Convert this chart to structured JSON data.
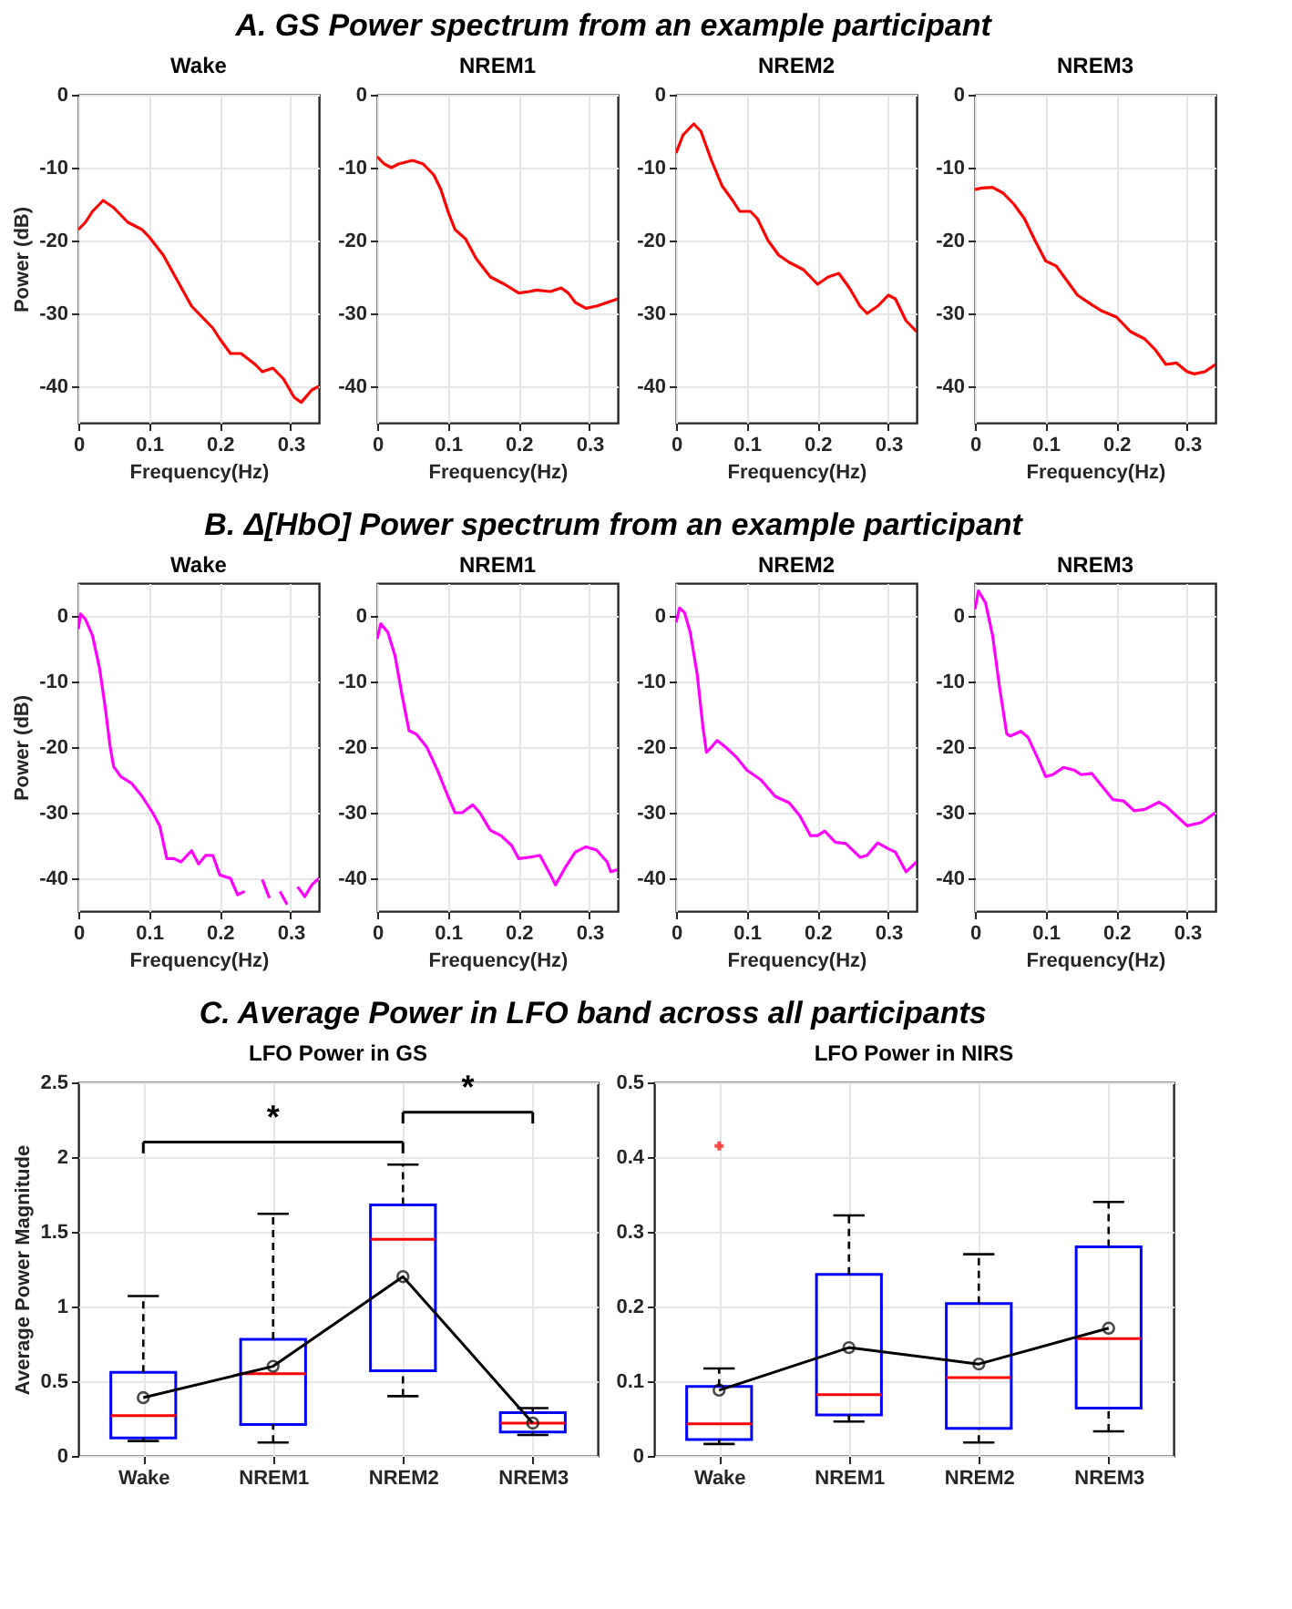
{
  "chart_data": [
    {
      "type": "line",
      "title": "Wake",
      "annotations": [
        "A. GS Power spectrum from an example participant"
      ],
      "xlabel": "Frequency(Hz)",
      "ylabel": "Power (dB)",
      "color": "#ff0000",
      "grid": true,
      "xlim": [
        0,
        0.34
      ],
      "xticks": [
        0,
        0.1,
        0.2,
        0.3
      ],
      "ylim": [
        -45,
        0
      ],
      "yticks": [
        -40,
        -30,
        -20,
        -10,
        0
      ],
      "x": [
        0,
        0.01,
        0.02,
        0.035,
        0.05,
        0.07,
        0.09,
        0.1,
        0.12,
        0.14,
        0.16,
        0.18,
        0.19,
        0.2,
        0.215,
        0.23,
        0.25,
        0.26,
        0.275,
        0.29,
        0.305,
        0.315,
        0.33,
        0.34
      ],
      "values": [
        -18.5,
        -17.5,
        -16,
        -14.5,
        -15.5,
        -17.5,
        -18.5,
        -19.5,
        -22,
        -25.5,
        -29,
        -31,
        -32,
        -33.5,
        -35.5,
        -35.5,
        -37,
        -38,
        -37.5,
        -39,
        -41.5,
        -42.2,
        -40.5,
        -40
      ]
    },
    {
      "type": "line",
      "title": "NREM1",
      "xlabel": "Frequency(Hz)",
      "color": "#ff0000",
      "grid": true,
      "xlim": [
        0,
        0.34
      ],
      "xticks": [
        0,
        0.1,
        0.2,
        0.3
      ],
      "ylim": [
        -45,
        0
      ],
      "yticks": [
        -40,
        -30,
        -20,
        -10,
        0
      ],
      "x": [
        0,
        0.01,
        0.02,
        0.03,
        0.05,
        0.065,
        0.08,
        0.09,
        0.1,
        0.11,
        0.125,
        0.14,
        0.16,
        0.18,
        0.2,
        0.215,
        0.225,
        0.245,
        0.26,
        0.27,
        0.28,
        0.295,
        0.31,
        0.34
      ],
      "values": [
        -8.5,
        -9.5,
        -10,
        -9.5,
        -9,
        -9.5,
        -11,
        -13,
        -16,
        -18.5,
        -19.8,
        -22.5,
        -25,
        -26,
        -27.2,
        -27,
        -26.8,
        -27,
        -26.5,
        -27.2,
        -28.5,
        -29.3,
        -29,
        -28
      ]
    },
    {
      "type": "line",
      "title": "NREM2",
      "xlabel": "Frequency(Hz)",
      "color": "#ff0000",
      "grid": true,
      "xlim": [
        0,
        0.34
      ],
      "xticks": [
        0,
        0.1,
        0.2,
        0.3
      ],
      "ylim": [
        -45,
        0
      ],
      "yticks": [
        -40,
        -30,
        -20,
        -10,
        0
      ],
      "x": [
        0,
        0.01,
        0.025,
        0.035,
        0.05,
        0.065,
        0.08,
        0.09,
        0.105,
        0.115,
        0.13,
        0.145,
        0.16,
        0.18,
        0.2,
        0.215,
        0.23,
        0.245,
        0.26,
        0.27,
        0.285,
        0.3,
        0.31,
        0.325,
        0.34
      ],
      "values": [
        -8,
        -5.5,
        -4,
        -5,
        -9,
        -12.5,
        -14.5,
        -16,
        -16,
        -17,
        -20,
        -22,
        -23,
        -24,
        -26,
        -25,
        -24.5,
        -26.5,
        -29,
        -30,
        -29,
        -27.5,
        -28,
        -31,
        -32.5
      ]
    },
    {
      "type": "line",
      "title": "NREM3",
      "xlabel": "Frequency(Hz)",
      "color": "#ff0000",
      "grid": true,
      "xlim": [
        0,
        0.34
      ],
      "xticks": [
        0,
        0.1,
        0.2,
        0.3
      ],
      "ylim": [
        -45,
        0
      ],
      "yticks": [
        -40,
        -30,
        -20,
        -10,
        0
      ],
      "x": [
        0,
        0.01,
        0.025,
        0.04,
        0.055,
        0.07,
        0.085,
        0.1,
        0.115,
        0.13,
        0.145,
        0.165,
        0.18,
        0.2,
        0.22,
        0.24,
        0.255,
        0.27,
        0.285,
        0.3,
        0.31,
        0.325,
        0.34
      ],
      "values": [
        -13,
        -12.8,
        -12.7,
        -13.5,
        -15,
        -17,
        -20,
        -22.8,
        -23.5,
        -25.5,
        -27.5,
        -28.8,
        -29.7,
        -30.5,
        -32.5,
        -33.5,
        -35,
        -37,
        -36.8,
        -38,
        -38.3,
        -38,
        -37
      ]
    },
    {
      "type": "line",
      "title": "Wake",
      "annotations": [
        "B. Δ[HbO] Power spectrum from an example participant"
      ],
      "xlabel": "Frequency(Hz)",
      "ylabel": "Power (dB)",
      "color": "#ff00ff",
      "grid": true,
      "xlim": [
        0,
        0.34
      ],
      "xticks": [
        0,
        0.1,
        0.2,
        0.3
      ],
      "ylim": [
        -45,
        5
      ],
      "yticks": [
        -40,
        -30,
        -20,
        -10,
        0
      ],
      "x": [
        0,
        0.003,
        0.01,
        0.02,
        0.03,
        0.038,
        0.045,
        0.05,
        0.06,
        0.075,
        0.09,
        0.105,
        0.115,
        0.125,
        0.135,
        0.145,
        0.16,
        0.17,
        0.18,
        0.19,
        0.2,
        0.215,
        0.225,
        0.235,
        0.247,
        0.26,
        0.27,
        0.275,
        0.285,
        0.295,
        0.3,
        0.31,
        0.32,
        0.33,
        0.34
      ],
      "values": [
        -2,
        0.3,
        -0.5,
        -3,
        -8,
        -14,
        -20,
        -23,
        -24.5,
        -25.5,
        -27.5,
        -30,
        -32,
        -37,
        -37,
        -37.5,
        -35.8,
        -37.8,
        -36.5,
        -36.5,
        -39.5,
        -40,
        -42.5,
        -42,
        null,
        -40.2,
        -43,
        null,
        -42,
        -44,
        null,
        -41.3,
        -42.8,
        -41,
        -40
      ]
    },
    {
      "type": "line",
      "title": "NREM1",
      "xlabel": "Frequency(Hz)",
      "color": "#ff00ff",
      "grid": true,
      "xlim": [
        0,
        0.34
      ],
      "xticks": [
        0,
        0.1,
        0.2,
        0.3
      ],
      "ylim": [
        -45,
        5
      ],
      "yticks": [
        -40,
        -30,
        -20,
        -10,
        0
      ],
      "x": [
        0,
        0.005,
        0.015,
        0.025,
        0.035,
        0.045,
        0.055,
        0.07,
        0.085,
        0.1,
        0.11,
        0.12,
        0.135,
        0.145,
        0.16,
        0.175,
        0.19,
        0.2,
        0.215,
        0.23,
        0.245,
        0.252,
        0.265,
        0.28,
        0.295,
        0.31,
        0.325,
        0.33,
        0.34
      ],
      "values": [
        -3.5,
        -1.2,
        -2.5,
        -6,
        -12,
        -17.5,
        -18,
        -20,
        -23.5,
        -27.5,
        -30,
        -30,
        -28.8,
        -30,
        -32.7,
        -33.5,
        -35,
        -37,
        -36.8,
        -36.5,
        -39.5,
        -41,
        -38.5,
        -36,
        -35.2,
        -35.7,
        -37.5,
        -39,
        -38.7
      ]
    },
    {
      "type": "line",
      "title": "NREM2",
      "xlabel": "Frequency(Hz)",
      "color": "#ff00ff",
      "grid": true,
      "xlim": [
        0,
        0.34
      ],
      "xticks": [
        0,
        0.1,
        0.2,
        0.3
      ],
      "ylim": [
        -45,
        5
      ],
      "yticks": [
        -40,
        -30,
        -20,
        -10,
        0
      ],
      "x": [
        0,
        0.005,
        0.012,
        0.02,
        0.03,
        0.038,
        0.043,
        0.05,
        0.058,
        0.07,
        0.085,
        0.1,
        0.12,
        0.14,
        0.16,
        0.175,
        0.19,
        0.2,
        0.21,
        0.225,
        0.24,
        0.26,
        0.27,
        0.285,
        0.3,
        0.31,
        0.325,
        0.34
      ],
      "values": [
        -1,
        1.2,
        0.5,
        -2.5,
        -9,
        -17,
        -20.8,
        -20,
        -19,
        -20,
        -21.5,
        -23.5,
        -25,
        -27.5,
        -28.5,
        -30.5,
        -33.5,
        -33.5,
        -32.8,
        -34.5,
        -34.7,
        -36.8,
        -36.5,
        -34.6,
        -35.5,
        -36,
        -39,
        -37.5
      ]
    },
    {
      "type": "line",
      "title": "NREM3",
      "xlabel": "Frequency(Hz)",
      "color": "#ff00ff",
      "grid": true,
      "xlim": [
        0,
        0.34
      ],
      "xticks": [
        0,
        0.1,
        0.2,
        0.3
      ],
      "ylim": [
        -45,
        5
      ],
      "yticks": [
        -40,
        -30,
        -20,
        -10,
        0
      ],
      "x": [
        0,
        0.005,
        0.015,
        0.025,
        0.035,
        0.045,
        0.05,
        0.065,
        0.075,
        0.09,
        0.1,
        0.11,
        0.125,
        0.14,
        0.15,
        0.165,
        0.18,
        0.195,
        0.21,
        0.225,
        0.24,
        0.26,
        0.27,
        0.285,
        0.3,
        0.32,
        0.34
      ],
      "values": [
        1,
        3.8,
        2,
        -3,
        -11,
        -18,
        -18.3,
        -17.6,
        -18.5,
        -22,
        -24.5,
        -24.2,
        -23.1,
        -23.5,
        -24.2,
        -24,
        -26,
        -28,
        -28.2,
        -29.7,
        -29.5,
        -28.4,
        -29,
        -30.5,
        -32,
        -31.5,
        -30
      ]
    },
    {
      "type": "box",
      "title": "LFO Power in GS",
      "annotations": [
        "C. Average Power in LFO band across all participants",
        "*",
        "*"
      ],
      "ylabel": "Average Power Magnitude",
      "grid": true,
      "ylim": [
        0,
        2.5
      ],
      "yticks": [
        0,
        0.5,
        1,
        1.5,
        2,
        2.5
      ],
      "categories": [
        "Wake",
        "NREM1",
        "NREM2",
        "NREM3"
      ],
      "series": [
        {
          "type": "box",
          "color": "#0000ff",
          "boxes": [
            {
              "low": 0.1,
              "q1": 0.12,
              "median": 0.27,
              "q3": 0.56,
              "high": 1.07
            },
            {
              "low": 0.09,
              "q1": 0.21,
              "median": 0.55,
              "q3": 0.78,
              "high": 1.62
            },
            {
              "low": 0.4,
              "q1": 0.57,
              "median": 1.45,
              "q3": 1.68,
              "high": 1.95
            },
            {
              "low": 0.14,
              "q1": 0.16,
              "median": 0.22,
              "q3": 0.29,
              "high": 0.32
            }
          ]
        },
        {
          "type": "line",
          "color": "#000000",
          "marker": "circle",
          "values": [
            0.39,
            0.6,
            1.2,
            0.22
          ]
        }
      ]
    },
    {
      "type": "box",
      "title": "LFO Power in NIRS",
      "grid": true,
      "ylim": [
        0,
        0.5
      ],
      "yticks": [
        0,
        0.1,
        0.2,
        0.3,
        0.4,
        0.5
      ],
      "categories": [
        "Wake",
        "NREM1",
        "NREM2",
        "NREM3"
      ],
      "series": [
        {
          "type": "box",
          "color": "#0000ff",
          "boxes": [
            {
              "low": 0.016,
              "q1": 0.022,
              "median": 0.043,
              "q3": 0.093,
              "high": 0.117,
              "outliers": [
                0.415
              ]
            },
            {
              "low": 0.046,
              "q1": 0.055,
              "median": 0.082,
              "q3": 0.243,
              "high": 0.322
            },
            {
              "low": 0.018,
              "q1": 0.037,
              "median": 0.105,
              "q3": 0.204,
              "high": 0.27
            },
            {
              "low": 0.033,
              "q1": 0.064,
              "median": 0.157,
              "q3": 0.28,
              "high": 0.34
            }
          ]
        },
        {
          "type": "line",
          "color": "#000000",
          "marker": "circle",
          "values": [
            0.088,
            0.145,
            0.123,
            0.171
          ]
        }
      ]
    }
  ]
}
